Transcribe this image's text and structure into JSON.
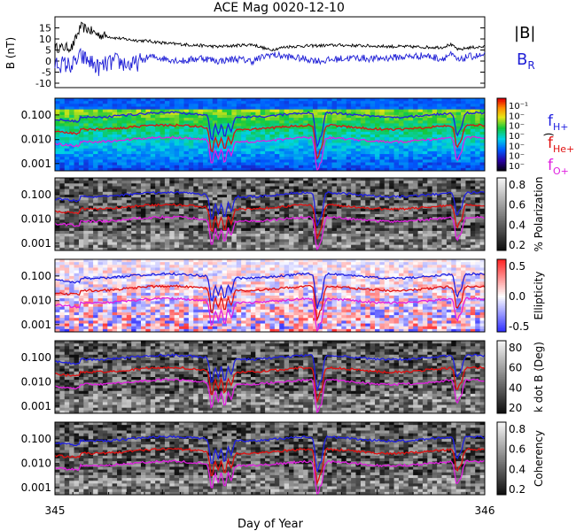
{
  "chart_data": {
    "type": "spectrogram",
    "title": "ACE Mag 0020-12-10",
    "x_axis": {
      "label": "Day of Year",
      "range": [
        345,
        346
      ],
      "tick_labels": [
        "345",
        "346"
      ]
    },
    "panels": [
      {
        "kind": "line",
        "ylabel": "B (nT)",
        "ylim": [
          -12,
          20
        ],
        "y_ticks": [
          "15",
          "10",
          "5",
          "0",
          "-5",
          "-10"
        ],
        "y_tick_values": [
          15,
          10,
          5,
          0,
          -5,
          -10
        ],
        "series": [
          {
            "name": "|B|",
            "color": "#000000",
            "x": [
              345.0,
              345.04,
              345.06,
              345.08,
              345.1,
              345.14,
              345.18,
              345.22,
              345.26,
              345.3,
              345.34,
              345.38,
              345.42,
              345.46,
              345.5,
              345.54,
              345.58,
              345.62,
              345.66,
              345.7,
              345.74,
              345.78,
              345.82,
              345.86,
              345.9,
              345.92,
              345.94,
              345.96,
              346.0
            ],
            "y": [
              6.0,
              6.2,
              15.5,
              14.0,
              12.0,
              10.5,
              9.5,
              9.0,
              8.0,
              7.5,
              7.0,
              6.5,
              7.0,
              7.5,
              5.0,
              6.5,
              6.8,
              7.0,
              7.2,
              7.0,
              6.8,
              6.6,
              6.5,
              6.3,
              6.2,
              7.5,
              5.0,
              6.0,
              6.5
            ]
          },
          {
            "name": "B_R",
            "color": "#1f1fd6",
            "x": [
              345.0,
              345.04,
              345.06,
              345.08,
              345.1,
              345.14,
              345.18,
              345.22,
              345.26,
              345.3,
              345.34,
              345.38,
              345.42,
              345.46,
              345.5,
              345.54,
              345.58,
              345.62,
              345.66,
              345.7,
              345.74,
              345.78,
              345.82,
              345.86,
              345.9,
              345.92,
              345.94,
              345.96,
              346.0
            ],
            "y": [
              -1.0,
              -2.0,
              2.0,
              0.0,
              -3.0,
              0.0,
              -2.0,
              2.0,
              1.0,
              0.0,
              1.5,
              0.0,
              1.0,
              0.0,
              3.0,
              2.0,
              1.0,
              0.0,
              1.0,
              1.5,
              1.0,
              1.5,
              2.0,
              2.5,
              1.0,
              3.0,
              0.0,
              2.0,
              2.5
            ]
          }
        ],
        "legend": [
          "|B|",
          "B_R"
        ]
      },
      {
        "kind": "spectrogram",
        "ylabel": "",
        "y_ticks": [
          "0.100",
          "0.010",
          "0.001"
        ],
        "colormap": "rainbow",
        "colorbar_ticks": [
          "10⁻¹",
          "10⁻",
          "10⁻",
          "10⁻",
          "10⁻",
          "10⁻",
          "10⁻"
        ],
        "colorbar_label": ")"
      },
      {
        "kind": "spectrogram",
        "ylabel": "",
        "y_ticks": [
          "0.100",
          "0.010",
          "0.001"
        ],
        "colormap": "gray",
        "colorbar_ticks": [
          "0.8",
          "0.6",
          "0.4",
          "0.2"
        ],
        "colorbar_label": "% Polarization"
      },
      {
        "kind": "spectrogram",
        "ylabel": "",
        "y_ticks": [
          "0.100",
          "0.010",
          "0.001"
        ],
        "colormap": "blue-white-red",
        "colorbar_ticks": [
          "0.5",
          "0.0",
          "-0.5"
        ],
        "colorbar_label": "Ellipticity"
      },
      {
        "kind": "spectrogram",
        "ylabel": "",
        "y_ticks": [
          "0.100",
          "0.010",
          "0.001"
        ],
        "colormap": "gray",
        "colorbar_ticks": [
          "80",
          "60",
          "40",
          "20"
        ],
        "colorbar_label": "k dot B (Deg)"
      },
      {
        "kind": "spectrogram",
        "ylabel": "",
        "y_ticks": [
          "0.100",
          "0.010",
          "0.001"
        ],
        "colormap": "gray",
        "colorbar_ticks": [
          "0.8",
          "0.6",
          "0.4",
          "0.2"
        ],
        "colorbar_label": "Coherency"
      }
    ],
    "overlay_series": [
      {
        "name": "f_H+",
        "color": "#1f1fe0",
        "base_value": 0.1
      },
      {
        "name": "f_He+",
        "color": "#e01010",
        "base_value": 0.025
      },
      {
        "name": "f_O+",
        "color": "#e020e0",
        "base_value": 0.0063
      }
    ],
    "grid": false
  },
  "legend_labels": {
    "B_magnitude": "|B|",
    "B_radial": "B",
    "B_radial_sub": "R",
    "fH": "f",
    "fH_sub": "H+",
    "fHe": "f",
    "fHe_sub": "He+",
    "fO": "f",
    "fO_sub": "O+"
  }
}
